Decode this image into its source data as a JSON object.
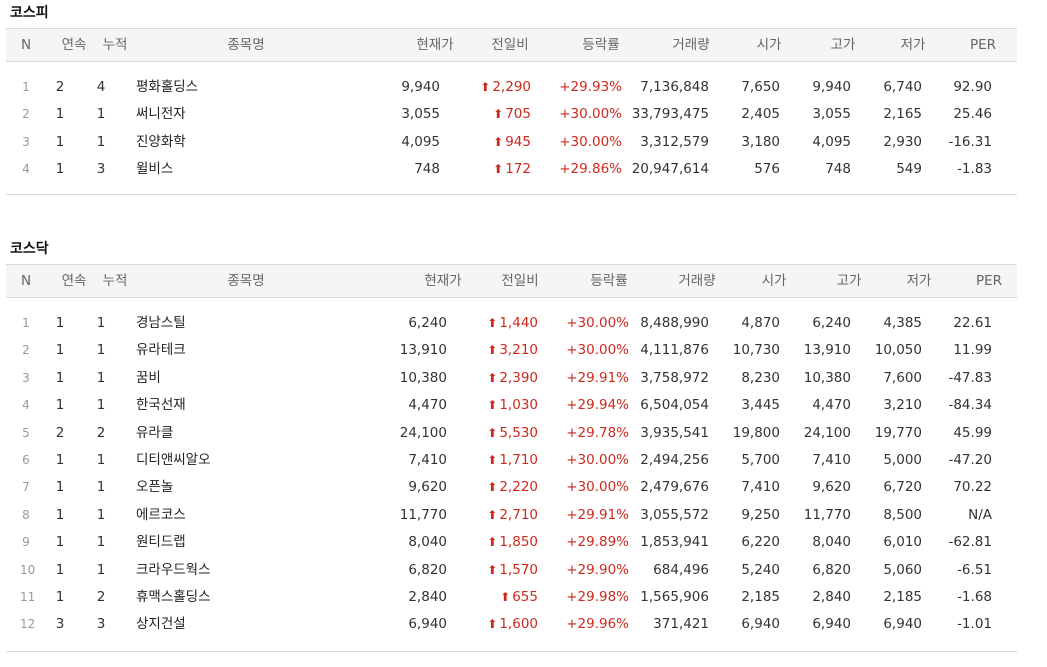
{
  "kospi": {
    "title": "코스피",
    "headers": [
      "N",
      "연속",
      "누적",
      "종목명",
      "현재가",
      "전일비",
      "등락률",
      "거래량",
      "시가",
      "고가",
      "저가",
      "PER"
    ],
    "rows": [
      {
        "n": "1",
        "streak": "2",
        "cumulative": "4",
        "name": "평화홀딩스",
        "price": "9,940",
        "change": "2,290",
        "rate": "+29.93%",
        "volume": "7,136,848",
        "open": "7,650",
        "high": "9,940",
        "low": "6,740",
        "per": "92.90"
      },
      {
        "n": "2",
        "streak": "1",
        "cumulative": "1",
        "name": "써니전자",
        "price": "3,055",
        "change": "705",
        "rate": "+30.00%",
        "volume": "33,793,475",
        "open": "2,405",
        "high": "3,055",
        "low": "2,165",
        "per": "25.46"
      },
      {
        "n": "3",
        "streak": "1",
        "cumulative": "1",
        "name": "진양화학",
        "price": "4,095",
        "change": "945",
        "rate": "+30.00%",
        "volume": "3,312,579",
        "open": "3,180",
        "high": "4,095",
        "low": "2,930",
        "per": "-16.31"
      },
      {
        "n": "4",
        "streak": "1",
        "cumulative": "3",
        "name": "윌비스",
        "price": "748",
        "change": "172",
        "rate": "+29.86%",
        "volume": "20,947,614",
        "open": "576",
        "high": "748",
        "low": "549",
        "per": "-1.83"
      }
    ]
  },
  "kosdaq": {
    "title": "코스닥",
    "headers": [
      "N",
      "연속",
      "누적",
      "종목명",
      "현재가",
      "전일비",
      "등락률",
      "거래량",
      "시가",
      "고가",
      "저가",
      "PER"
    ],
    "rows": [
      {
        "n": "1",
        "streak": "1",
        "cumulative": "1",
        "name": "경남스틸",
        "price": "6,240",
        "change": "1,440",
        "rate": "+30.00%",
        "volume": "8,488,990",
        "open": "4,870",
        "high": "6,240",
        "low": "4,385",
        "per": "22.61"
      },
      {
        "n": "2",
        "streak": "1",
        "cumulative": "1",
        "name": "유라테크",
        "price": "13,910",
        "change": "3,210",
        "rate": "+30.00%",
        "volume": "4,111,876",
        "open": "10,730",
        "high": "13,910",
        "low": "10,050",
        "per": "11.99"
      },
      {
        "n": "3",
        "streak": "1",
        "cumulative": "1",
        "name": "꿈비",
        "price": "10,380",
        "change": "2,390",
        "rate": "+29.91%",
        "volume": "3,758,972",
        "open": "8,230",
        "high": "10,380",
        "low": "7,600",
        "per": "-47.83"
      },
      {
        "n": "4",
        "streak": "1",
        "cumulative": "1",
        "name": "한국선재",
        "price": "4,470",
        "change": "1,030",
        "rate": "+29.94%",
        "volume": "6,504,054",
        "open": "3,445",
        "high": "4,470",
        "low": "3,210",
        "per": "-84.34"
      },
      {
        "n": "5",
        "streak": "2",
        "cumulative": "2",
        "name": "유라클",
        "price": "24,100",
        "change": "5,530",
        "rate": "+29.78%",
        "volume": "3,935,541",
        "open": "19,800",
        "high": "24,100",
        "low": "19,770",
        "per": "45.99"
      },
      {
        "n": "6",
        "streak": "1",
        "cumulative": "1",
        "name": "디티앤씨알오",
        "price": "7,410",
        "change": "1,710",
        "rate": "+30.00%",
        "volume": "2,494,256",
        "open": "5,700",
        "high": "7,410",
        "low": "5,000",
        "per": "-47.20"
      },
      {
        "n": "7",
        "streak": "1",
        "cumulative": "1",
        "name": "오픈놀",
        "price": "9,620",
        "change": "2,220",
        "rate": "+30.00%",
        "volume": "2,479,676",
        "open": "7,410",
        "high": "9,620",
        "low": "6,720",
        "per": "70.22"
      },
      {
        "n": "8",
        "streak": "1",
        "cumulative": "1",
        "name": "에르코스",
        "price": "11,770",
        "change": "2,710",
        "rate": "+29.91%",
        "volume": "3,055,572",
        "open": "9,250",
        "high": "11,770",
        "low": "8,500",
        "per": "N/A"
      },
      {
        "n": "9",
        "streak": "1",
        "cumulative": "1",
        "name": "원티드랩",
        "price": "8,040",
        "change": "1,850",
        "rate": "+29.89%",
        "volume": "1,853,941",
        "open": "6,220",
        "high": "8,040",
        "low": "6,010",
        "per": "-62.81"
      },
      {
        "n": "10",
        "streak": "1",
        "cumulative": "1",
        "name": "크라우드웍스",
        "price": "6,820",
        "change": "1,570",
        "rate": "+29.90%",
        "volume": "684,496",
        "open": "5,240",
        "high": "6,820",
        "low": "5,060",
        "per": "-6.51"
      },
      {
        "n": "11",
        "streak": "1",
        "cumulative": "2",
        "name": "휴맥스홀딩스",
        "price": "2,840",
        "change": "655",
        "rate": "+29.98%",
        "volume": "1,565,906",
        "open": "2,185",
        "high": "2,840",
        "low": "2,185",
        "per": "-1.68"
      },
      {
        "n": "12",
        "streak": "3",
        "cumulative": "3",
        "name": "상지건설",
        "price": "6,940",
        "change": "1,600",
        "rate": "+29.96%",
        "volume": "371,421",
        "open": "6,940",
        "high": "6,940",
        "low": "6,940",
        "per": "-1.01"
      }
    ]
  },
  "icons": {
    "change_up": "arrow-up-icon"
  },
  "colors": {
    "up": "#cc2a1e",
    "header_bg": "#f5f5f5",
    "border": "#d9d9d9"
  }
}
